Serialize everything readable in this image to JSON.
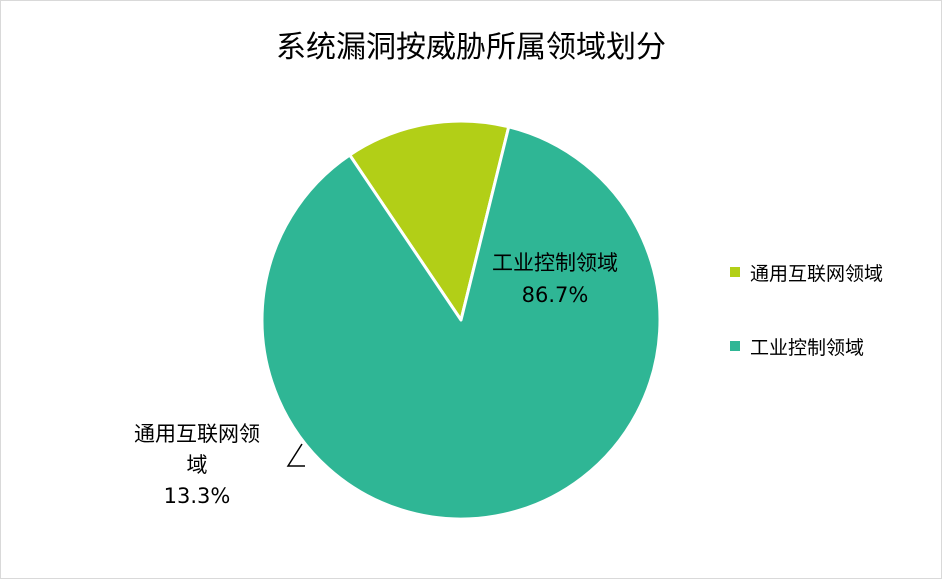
{
  "chart_data": {
    "type": "pie",
    "title": "系统漏洞按威胁所属领域划分",
    "categories": [
      "通用互联网领域",
      "工业控制领域"
    ],
    "values": [
      13.3,
      86.7
    ],
    "value_labels": [
      "13.3%",
      "86.7%"
    ],
    "colors": [
      "#b2cf17",
      "#2fb695"
    ],
    "legend_position": "right",
    "start_angle_deg": -124
  }
}
